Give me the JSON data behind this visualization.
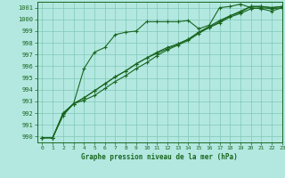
{
  "title": "Graphe pression niveau de la mer (hPa)",
  "xlim": [
    -0.5,
    23
  ],
  "ylim": [
    989.5,
    1001.5
  ],
  "yticks": [
    990,
    991,
    992,
    993,
    994,
    995,
    996,
    997,
    998,
    999,
    1000,
    1001
  ],
  "xticks": [
    0,
    1,
    2,
    3,
    4,
    5,
    6,
    7,
    8,
    9,
    10,
    11,
    12,
    13,
    14,
    15,
    16,
    17,
    18,
    19,
    20,
    21,
    22,
    23
  ],
  "bg_color": "#b3e8e0",
  "grid_color": "#80c8b8",
  "line_color": "#1a6620",
  "line1_x": [
    0,
    1,
    2,
    3,
    4,
    5,
    6,
    7,
    8,
    9,
    10,
    11,
    12,
    13,
    14,
    15,
    16,
    17,
    18,
    19,
    20,
    21,
    22,
    23
  ],
  "line1_y": [
    989.9,
    989.9,
    991.8,
    992.8,
    995.8,
    997.2,
    997.6,
    998.7,
    998.9,
    999.0,
    999.8,
    999.8,
    999.8,
    999.8,
    999.9,
    999.2,
    999.5,
    1001.0,
    1001.1,
    1001.3,
    1001.0,
    1000.9,
    1000.7,
    1001.0
  ],
  "line2_x": [
    0,
    1,
    2,
    3,
    4,
    5,
    6,
    7,
    8,
    9,
    10,
    11,
    12,
    13,
    14,
    15,
    16,
    17,
    18,
    19,
    20,
    21,
    22,
    23
  ],
  "line2_y": [
    989.9,
    989.9,
    991.9,
    992.8,
    993.1,
    993.5,
    994.1,
    994.7,
    995.2,
    995.8,
    996.3,
    996.9,
    997.4,
    997.8,
    998.2,
    998.8,
    999.3,
    999.8,
    1000.3,
    1000.6,
    1001.1,
    1001.1,
    1001.0,
    1001.1
  ],
  "line3_x": [
    0,
    1,
    2,
    3,
    4,
    5,
    6,
    7,
    8,
    9,
    10,
    11,
    12,
    13,
    14,
    15,
    16,
    17,
    18,
    19,
    20,
    21,
    22,
    23
  ],
  "line3_y": [
    989.9,
    989.9,
    992.0,
    992.8,
    993.3,
    993.9,
    994.5,
    995.1,
    995.6,
    996.2,
    996.7,
    997.2,
    997.6,
    997.9,
    998.3,
    998.9,
    999.4,
    999.9,
    1000.3,
    1000.7,
    1001.1,
    1001.1,
    1001.0,
    1001.1
  ],
  "line4_x": [
    0,
    1,
    2,
    3,
    4,
    5,
    6,
    7,
    8,
    9,
    10,
    11,
    12,
    13,
    14,
    15,
    16,
    17,
    18,
    19,
    20,
    21,
    22,
    23
  ],
  "line4_y": [
    989.9,
    989.9,
    992.0,
    992.8,
    993.3,
    993.9,
    994.5,
    995.1,
    995.6,
    996.2,
    996.7,
    997.1,
    997.5,
    997.9,
    998.3,
    998.9,
    999.3,
    999.7,
    1000.2,
    1000.5,
    1000.9,
    1001.0,
    1000.9,
    1001.0
  ]
}
